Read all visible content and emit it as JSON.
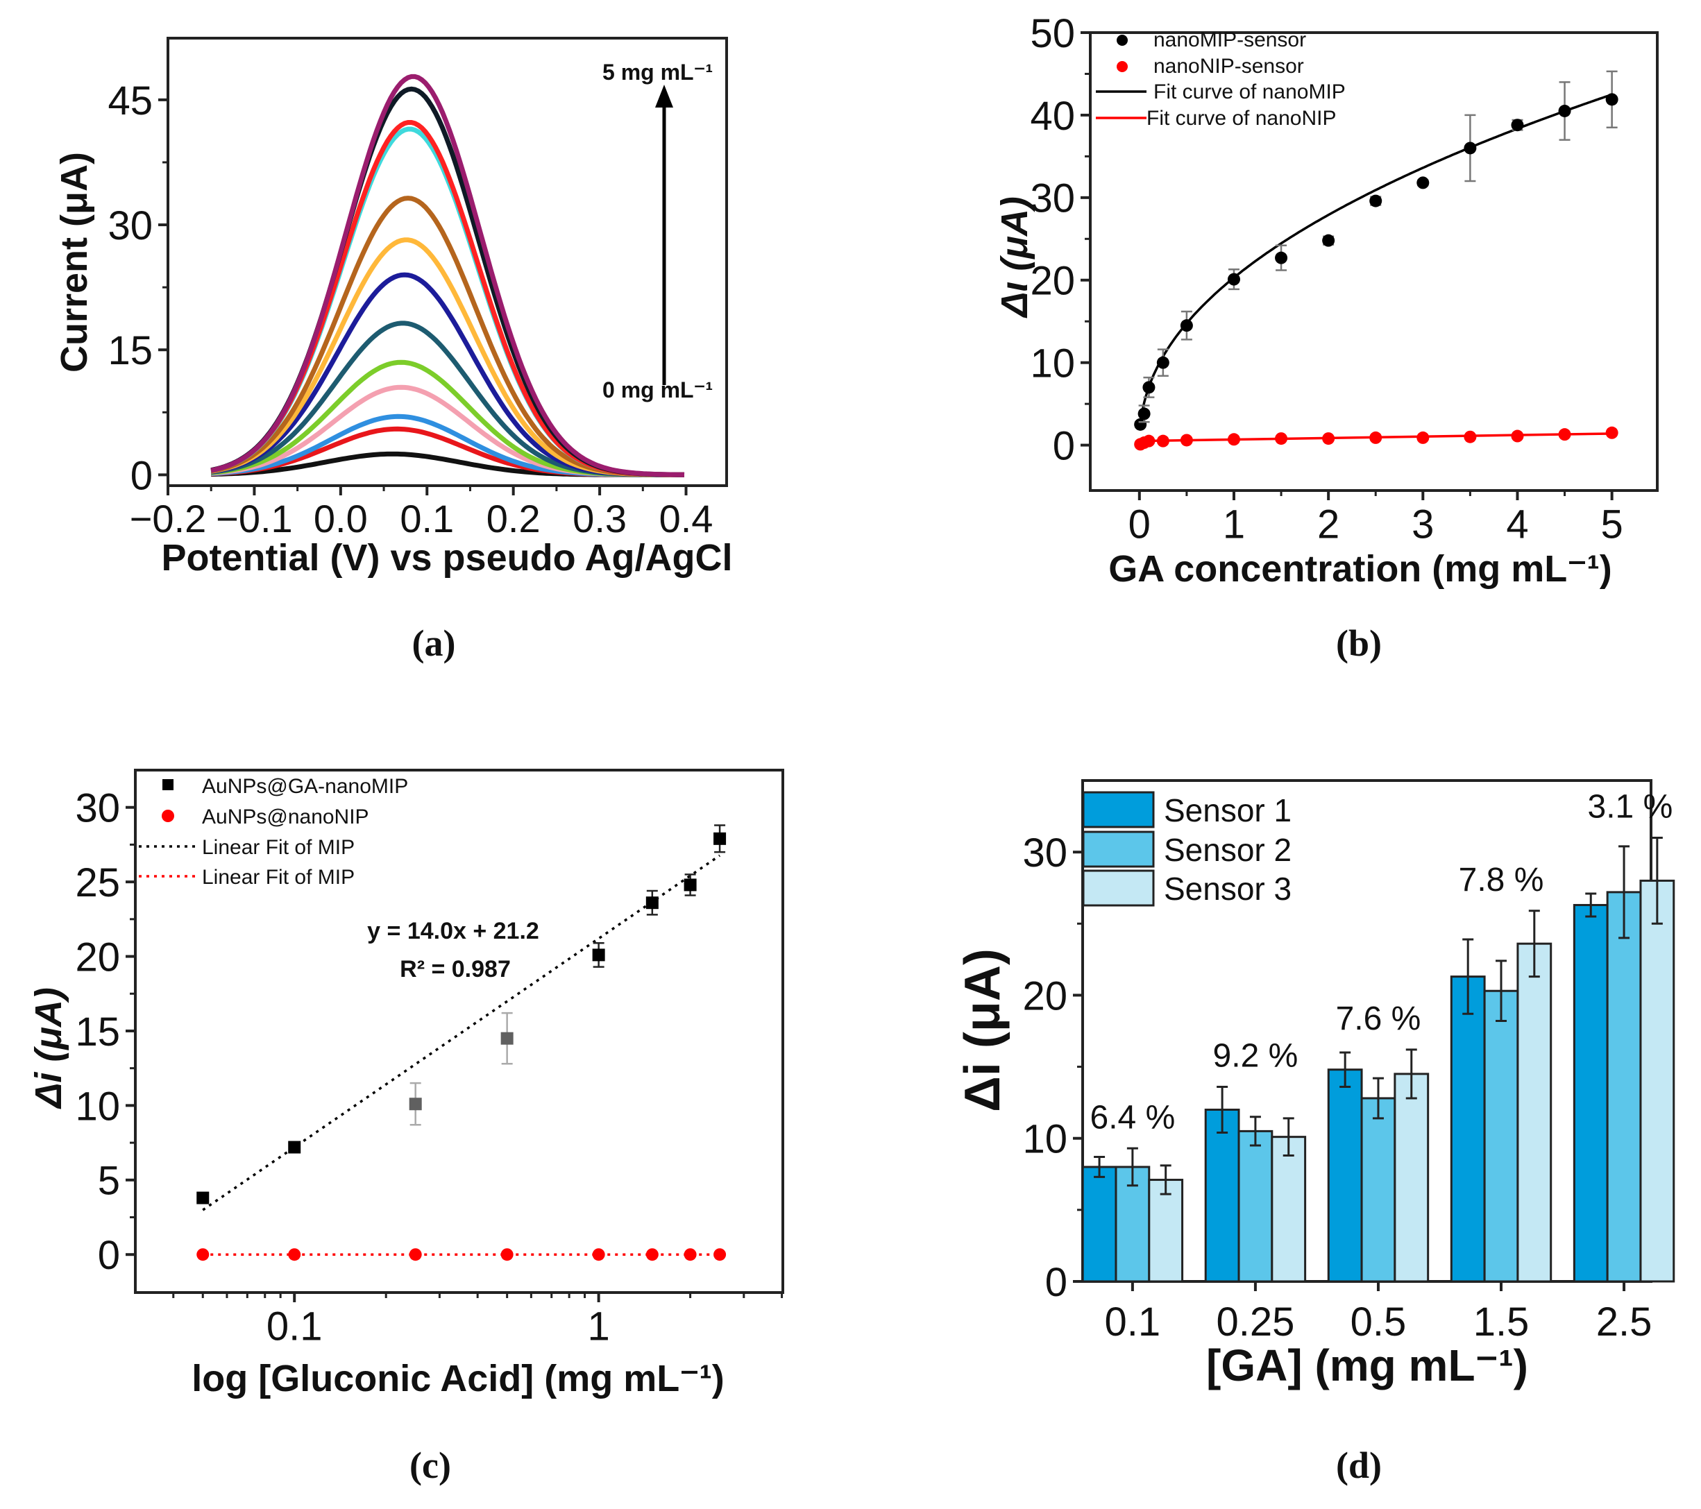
{
  "chart_data": [
    {
      "panel": "(a)",
      "type": "line",
      "xlabel": "Potential (V) vs pseudo Ag/AgCl",
      "ylabel": "Current (μA)",
      "xlim": [
        -0.2,
        0.447
      ],
      "ylim": [
        -1.3,
        52.4
      ],
      "xticks": [
        -0.2,
        -0.1,
        0.0,
        0.1,
        0.2,
        0.3,
        0.4
      ],
      "xtick_labels": [
        "−0.2",
        "−0.1",
        "0.0",
        "0.1",
        "0.2",
        "0.3",
        "0.4"
      ],
      "yticks": [
        0,
        15,
        30,
        45
      ],
      "ytick_labels": [
        "0",
        "15",
        "30",
        "45"
      ],
      "annotations": {
        "top": "5 mg mL⁻¹",
        "bottom": "0 mg mL⁻¹"
      },
      "x_range_of_curves": [
        -0.15,
        0.4
      ],
      "series": [
        {
          "peak_potential": 0.06,
          "peak_current": 2.5,
          "color": "#111111"
        },
        {
          "peak_potential": 0.065,
          "peak_current": 5.5,
          "color": "#e8161b"
        },
        {
          "peak_potential": 0.067,
          "peak_current": 7.0,
          "color": "#2f8fe0"
        },
        {
          "peak_potential": 0.07,
          "peak_current": 10.5,
          "color": "#f4a0b0"
        },
        {
          "peak_potential": 0.07,
          "peak_current": 13.5,
          "color": "#7ccd2a"
        },
        {
          "peak_potential": 0.072,
          "peak_current": 18.2,
          "color": "#1d5b70"
        },
        {
          "peak_potential": 0.074,
          "peak_current": 24.0,
          "color": "#1c1c9a"
        },
        {
          "peak_potential": 0.076,
          "peak_current": 28.2,
          "color": "#ffb83a"
        },
        {
          "peak_potential": 0.078,
          "peak_current": 33.2,
          "color": "#b5651d"
        },
        {
          "peak_potential": 0.08,
          "peak_current": 41.5,
          "color": "#3fd9dc"
        },
        {
          "peak_potential": 0.08,
          "peak_current": 42.3,
          "color": "#ff2222"
        },
        {
          "peak_potential": 0.082,
          "peak_current": 46.3,
          "color": "#0f1a26"
        },
        {
          "peak_potential": 0.084,
          "peak_current": 47.8,
          "color": "#9b1d6e"
        }
      ]
    },
    {
      "panel": "(b)",
      "type": "scatter",
      "xlabel": "GA concentration (mg mL⁻¹)",
      "ylabel": "Δι (μA)",
      "xlim": [
        -0.52,
        5.48
      ],
      "ylim": [
        -5.5,
        50
      ],
      "xticks": [
        0,
        1,
        2,
        3,
        4,
        5
      ],
      "yticks": [
        0,
        10,
        20,
        30,
        40,
        50
      ],
      "legend_position": "top-left",
      "series": [
        {
          "name": "nanoMIP-sensor",
          "color": "#000000",
          "x": [
            0.01,
            0.05,
            0.1,
            0.25,
            0.5,
            1,
            1.5,
            2,
            2.5,
            3,
            3.5,
            4,
            4.5,
            5
          ],
          "y": [
            2.5,
            3.8,
            7.0,
            10.0,
            14.5,
            20.1,
            22.7,
            24.8,
            29.6,
            31.8,
            36.0,
            38.8,
            40.5,
            41.9
          ],
          "err": [
            0.3,
            1.0,
            1.2,
            1.6,
            1.7,
            1.2,
            1.5,
            0.5,
            0.5,
            0.3,
            4.0,
            0.6,
            3.5,
            3.4
          ]
        },
        {
          "name": "nanoNIP-sensor",
          "color": "#ff0000",
          "x": [
            0.01,
            0.05,
            0.1,
            0.25,
            0.5,
            1,
            1.5,
            2,
            2.5,
            3,
            3.5,
            4,
            4.5,
            5
          ],
          "y": [
            0.1,
            0.3,
            0.5,
            0.5,
            0.6,
            0.7,
            0.8,
            0.8,
            0.9,
            0.9,
            1.0,
            1.1,
            1.3,
            1.5
          ]
        }
      ],
      "fits": [
        {
          "name": "Fit curve of nanoMIP",
          "color": "#000000",
          "model": "power",
          "a": 20.3,
          "b": 0.459
        },
        {
          "name": "Fit curve of nanoNIP",
          "color": "#ff0000",
          "model": "linear",
          "slope": 0.18,
          "intercept": 0.5
        }
      ]
    },
    {
      "panel": "(c)",
      "type": "scatter",
      "xlabel": "log [Gluconic Acid] (mg mL⁻¹)",
      "ylabel": "Δi (μA)",
      "xscale": "log",
      "xlim": [
        0.03,
        4.03
      ],
      "ylim": [
        -2.55,
        32.5
      ],
      "xticks": [
        0.1,
        1
      ],
      "xtick_labels": [
        "0.1",
        "1"
      ],
      "yticks": [
        0,
        5,
        10,
        15,
        20,
        25,
        30
      ],
      "legend_position": "top-left",
      "equation": "y = 14.0x + 21.2",
      "r2": "R² = 0.987",
      "series": [
        {
          "name": "AuNPs@GA-nanoMIP",
          "color": "#000000",
          "x": [
            0.05,
            0.1,
            0.25,
            0.5,
            1,
            1.5,
            2,
            2.5
          ],
          "y": [
            3.8,
            7.2,
            10.1,
            14.5,
            20.1,
            23.6,
            24.8,
            27.9
          ],
          "err": [
            0.3,
            0.3,
            1.4,
            1.7,
            0.8,
            0.8,
            0.7,
            0.9
          ],
          "outlier_color": "#606060",
          "outliers": [
            0.25,
            0.5
          ]
        },
        {
          "name": "AuNPs@nanoNIP",
          "color": "#ff0000",
          "x": [
            0.05,
            0.1,
            0.25,
            0.5,
            1,
            1.5,
            2,
            2.5
          ],
          "y": [
            0,
            0,
            0,
            0,
            0,
            0,
            0,
            0
          ]
        }
      ],
      "fits": [
        {
          "name": "Linear Fit of MIP",
          "color": "#000000",
          "slope": 14.0,
          "intercept": 21.2
        },
        {
          "name": "Linear Fit of MIP",
          "color": "#ff0000",
          "slope": 0,
          "intercept": 0
        }
      ]
    },
    {
      "panel": "(d)",
      "type": "bar",
      "xlabel": "[GA] (mg mL⁻¹)",
      "ylabel": "Δi (μA)",
      "categories": [
        "0.1",
        "0.25",
        "0.5",
        "1.5",
        "2.5"
      ],
      "ylim": [
        0,
        35
      ],
      "yticks": [
        0,
        10,
        20,
        30
      ],
      "legend_position": "top-left",
      "rsd_labels": [
        "6.4 %",
        "9.2 %",
        "7.6 %",
        "7.8 %",
        "3.1 %"
      ],
      "series": [
        {
          "name": "Sensor 1",
          "color": "#009ddc",
          "values": [
            8.0,
            12.0,
            14.8,
            21.3,
            26.3
          ],
          "err": [
            0.7,
            1.6,
            1.2,
            2.6,
            0.8
          ]
        },
        {
          "name": "Sensor 2",
          "color": "#5cc6ea",
          "values": [
            8.0,
            10.5,
            12.8,
            20.3,
            27.2
          ],
          "err": [
            1.3,
            1.0,
            1.4,
            2.1,
            3.2
          ]
        },
        {
          "name": "Sensor 3",
          "color": "#c4e8f4",
          "values": [
            7.1,
            10.1,
            14.5,
            23.6,
            28.0
          ],
          "err": [
            1.0,
            1.3,
            1.7,
            2.3,
            3.0
          ]
        }
      ]
    }
  ]
}
